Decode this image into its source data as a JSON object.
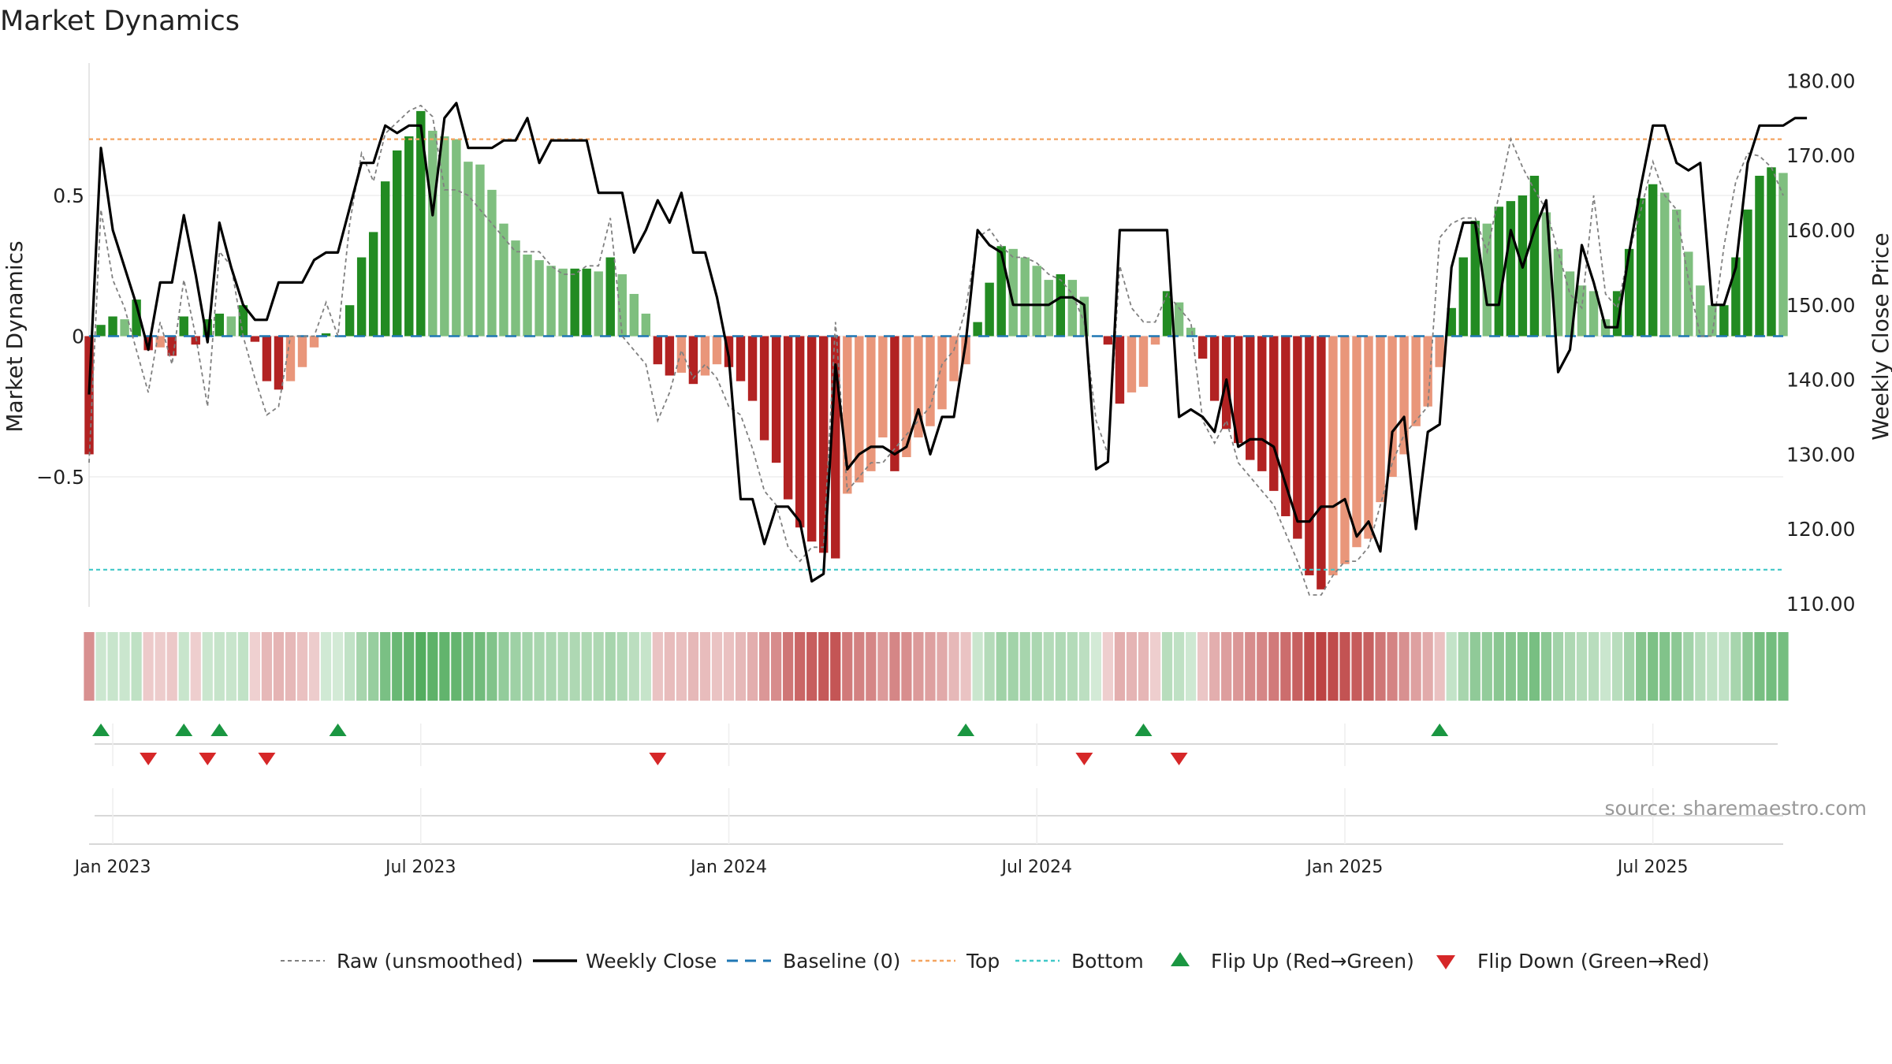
{
  "title": "Market Dynamics",
  "source_text": "source: sharemaestro.com",
  "colors": {
    "strong_green": "#228b22",
    "light_green": "#7fbf7f",
    "strong_red": "#b22222",
    "light_red": "#e9967a",
    "close_line": "#000000",
    "raw_line": "#808080",
    "baseline": "#1f77b4",
    "top": "#f4a460",
    "bottom": "#40c8c8",
    "flip_up": "#1a9641",
    "flip_down": "#d62728"
  },
  "legend": {
    "raw": "Raw (unsmoothed)",
    "close": "Weekly Close",
    "baseline": "Baseline (0)",
    "top": "Top",
    "bottom": "Bottom",
    "flip_up": "Flip Up (Red→Green)",
    "flip_down": "Flip Down (Green→Red)"
  },
  "chart_data": {
    "type": "bar",
    "title": "Market Dynamics",
    "ylabel": "Market Dynamics",
    "y2label": "Weekly Close Price",
    "ylim": [
      -0.97,
      0.97
    ],
    "y2lim": [
      108,
      181
    ],
    "y_ticks": [
      -0.5,
      0,
      0.5
    ],
    "y_tick_labels": [
      "−0.5",
      "0",
      "0.5"
    ],
    "y2_ticks": [
      110,
      120,
      130,
      140,
      150,
      160,
      170,
      180
    ],
    "y2_tick_labels": [
      "110.00",
      "120.00",
      "130.00",
      "140.00",
      "150.00",
      "160.00",
      "170.00",
      "180.00"
    ],
    "x_tick_labels": [
      "Jan 2023",
      "Jul 2023",
      "Jan 2024",
      "Jul 2024",
      "Jan 2025",
      "Jul 2025"
    ],
    "x_tick_weeks": [
      2,
      28,
      54,
      80,
      106,
      132
    ],
    "top_level": 0.7,
    "bottom_level": -0.83,
    "baseline_level": 0,
    "start_date": "2022-12-19",
    "week_step_days": 7,
    "dynamics": [
      -0.42,
      0.04,
      0.07,
      0.06,
      0.13,
      -0.05,
      -0.04,
      -0.07,
      0.07,
      -0.03,
      0.06,
      0.08,
      0.07,
      0.11,
      -0.02,
      -0.16,
      -0.19,
      -0.16,
      -0.11,
      -0.04,
      0.01,
      0.0,
      0.11,
      0.28,
      0.37,
      0.55,
      0.66,
      0.71,
      0.8,
      0.73,
      0.71,
      0.7,
      0.62,
      0.61,
      0.52,
      0.4,
      0.34,
      0.29,
      0.27,
      0.25,
      0.24,
      0.24,
      0.24,
      0.23,
      0.28,
      0.22,
      0.15,
      0.08,
      -0.1,
      -0.14,
      -0.13,
      -0.17,
      -0.14,
      -0.1,
      -0.11,
      -0.16,
      -0.23,
      -0.37,
      -0.45,
      -0.58,
      -0.68,
      -0.73,
      -0.77,
      -0.79,
      -0.56,
      -0.52,
      -0.48,
      -0.36,
      -0.48,
      -0.43,
      -0.36,
      -0.32,
      -0.26,
      -0.16,
      -0.1,
      0.05,
      0.19,
      0.32,
      0.31,
      0.28,
      0.25,
      0.2,
      0.22,
      0.2,
      0.14,
      0.0,
      -0.03,
      -0.24,
      -0.2,
      -0.18,
      -0.03,
      0.16,
      0.12,
      0.03,
      -0.08,
      -0.23,
      -0.33,
      -0.38,
      -0.44,
      -0.48,
      -0.55,
      -0.64,
      -0.72,
      -0.85,
      -0.9,
      -0.85,
      -0.81,
      -0.75,
      -0.72,
      -0.59,
      -0.5,
      -0.42,
      -0.32,
      -0.25,
      -0.11,
      0.1,
      0.28,
      0.41,
      0.4,
      0.46,
      0.48,
      0.5,
      0.57,
      0.44,
      0.31,
      0.23,
      0.18,
      0.16,
      0.06,
      0.16,
      0.31,
      0.49,
      0.54,
      0.51,
      0.45,
      0.3,
      0.18,
      0.11,
      0.11,
      0.28,
      0.45,
      0.57,
      0.6,
      0.58
    ],
    "raw": [
      -0.45,
      0.45,
      0.2,
      0.1,
      -0.05,
      -0.2,
      0.05,
      -0.1,
      0.2,
      0.0,
      -0.25,
      0.3,
      0.25,
      0.0,
      -0.15,
      -0.28,
      -0.25,
      0.0,
      0.0,
      0.0,
      0.12,
      0.0,
      0.4,
      0.65,
      0.55,
      0.72,
      0.76,
      0.8,
      0.82,
      0.78,
      0.52,
      0.52,
      0.5,
      0.45,
      0.4,
      0.35,
      0.3,
      0.3,
      0.3,
      0.25,
      0.22,
      0.22,
      0.25,
      0.25,
      0.42,
      0.0,
      -0.05,
      -0.1,
      -0.3,
      -0.2,
      -0.05,
      -0.15,
      -0.1,
      -0.15,
      -0.25,
      -0.28,
      -0.4,
      -0.55,
      -0.6,
      -0.75,
      -0.8,
      -0.75,
      -0.75,
      0.05,
      -0.55,
      -0.5,
      -0.45,
      -0.45,
      -0.4,
      -0.35,
      -0.3,
      -0.25,
      -0.1,
      -0.05,
      0.1,
      0.35,
      0.38,
      0.32,
      0.28,
      0.28,
      0.26,
      0.22,
      0.2,
      0.15,
      0.05,
      -0.3,
      -0.42,
      0.25,
      0.1,
      0.05,
      0.05,
      0.15,
      0.1,
      0.05,
      -0.3,
      -0.38,
      -0.3,
      -0.45,
      -0.5,
      -0.55,
      -0.6,
      -0.7,
      -0.8,
      -0.92,
      -0.92,
      -0.85,
      -0.8,
      -0.8,
      -0.75,
      -0.6,
      -0.45,
      -0.35,
      -0.3,
      -0.25,
      0.35,
      0.4,
      0.42,
      0.42,
      0.3,
      0.5,
      0.7,
      0.6,
      0.52,
      0.45,
      0.3,
      0.15,
      0.1,
      0.5,
      0.15,
      0.1,
      0.3,
      0.45,
      0.62,
      0.5,
      0.45,
      0.2,
      0.0,
      0.0,
      0.32,
      0.55,
      0.65,
      0.64,
      0.6,
      0.5
    ],
    "close": [
      138,
      171,
      160,
      155,
      150,
      144,
      153,
      153,
      162,
      154,
      145,
      161,
      155,
      150,
      148,
      148,
      153,
      153,
      153,
      156,
      157,
      157,
      163,
      169,
      169,
      174,
      173,
      174,
      174,
      162,
      175,
      177,
      171,
      171,
      171,
      172,
      172,
      175,
      169,
      172,
      172,
      172,
      172,
      165,
      165,
      165,
      157,
      160,
      164,
      161,
      165,
      157,
      157,
      151,
      143,
      124,
      124,
      118,
      123,
      123,
      121,
      113,
      114,
      142,
      128,
      130,
      131,
      131,
      130,
      131,
      136,
      130,
      135,
      135,
      145,
      160,
      158,
      157,
      150,
      150,
      150,
      150,
      151,
      151,
      150,
      128,
      129,
      160,
      160,
      160,
      160,
      160,
      135,
      136,
      135,
      133,
      140,
      131,
      132,
      132,
      131,
      126,
      121,
      121,
      123,
      123,
      124,
      119,
      121,
      117,
      133,
      135,
      120,
      133,
      134,
      155,
      161,
      161,
      150,
      150,
      160,
      155,
      160,
      164,
      141,
      144,
      158,
      153,
      147,
      147,
      157,
      166,
      174,
      174,
      169,
      168,
      169,
      150,
      150,
      155,
      169,
      174,
      174,
      174,
      175,
      175
    ],
    "flip_up_weeks": [
      1,
      8,
      11,
      21,
      74,
      89,
      114
    ],
    "flip_down_weeks": [
      5,
      10,
      15,
      48,
      84,
      92
    ]
  }
}
